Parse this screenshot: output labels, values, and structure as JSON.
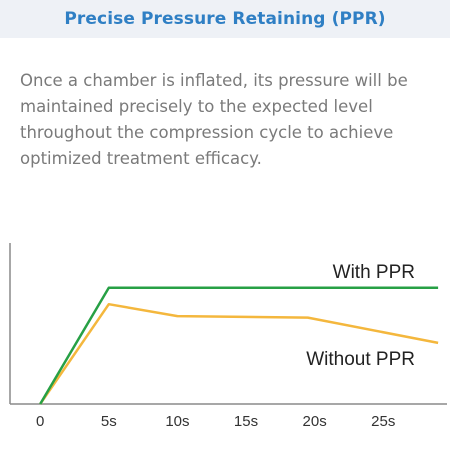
{
  "header": {
    "title": "Precise Pressure Retaining (PPR)"
  },
  "description": "Once a chamber is inflated, its pressure will be maintained precisely to the expected level throughout the compression cycle to achieve optimized treatment efficacy.",
  "colors": {
    "with_ppr": "#27a045",
    "without_ppr": "#f4b73d",
    "axis": "#8a8a8a",
    "title": "#2f7fc4",
    "header_bg": "#eef1f6"
  },
  "chart_data": {
    "type": "line",
    "title": "",
    "xlabel": "",
    "ylabel": "",
    "x_ticks": [
      "0",
      "5s",
      "10s",
      "15s",
      "20s",
      "25s"
    ],
    "x_tick_values": [
      0,
      5,
      10,
      15,
      20,
      25
    ],
    "xlim": [
      -2.2,
      29.5
    ],
    "ylim": [
      0,
      100
    ],
    "grid": false,
    "series": [
      {
        "name": "With PPR",
        "x": [
          0,
          5,
          29
        ],
        "y": [
          0,
          78,
          78
        ]
      },
      {
        "name": "Without PPR",
        "x": [
          0,
          5,
          10,
          19.5,
          29
        ],
        "y": [
          0,
          67,
          59,
          58,
          41
        ]
      }
    ]
  }
}
